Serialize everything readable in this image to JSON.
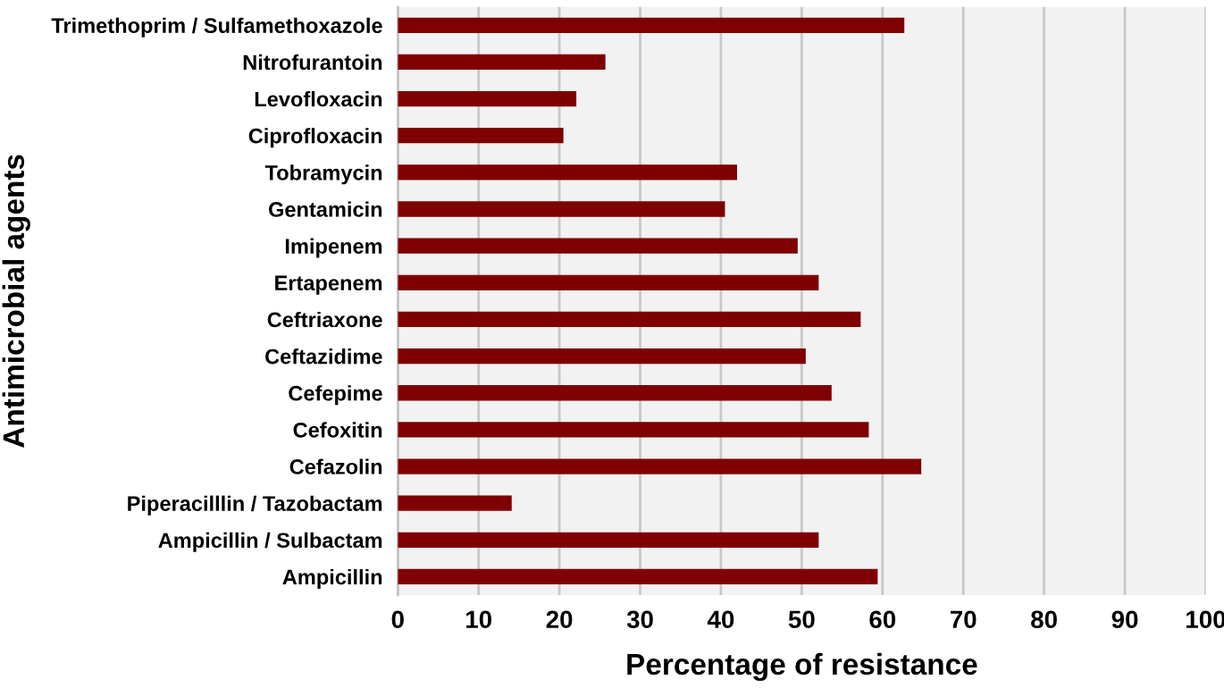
{
  "chart_data": {
    "type": "bar",
    "orientation": "horizontal",
    "xlabel": "Percentage of resistance",
    "ylabel": "Antimicrobial agents",
    "categories": [
      "Trimethoprim / Sulfamethoxazole",
      "Nitrofurantoin",
      "Levofloxacin",
      "Ciprofloxacin",
      "Tobramycin",
      "Gentamicin",
      "Imipenem",
      "Ertapenem",
      "Ceftriaxone",
      "Ceftazidime",
      "Cefepime",
      "Cefoxitin",
      "Cefazolin",
      "Piperacilllin / Tazobactam",
      "Ampicillin / Sulbactam",
      "Ampicillin"
    ],
    "values": [
      62.7,
      25.7,
      22.1,
      20.5,
      42.0,
      40.5,
      49.5,
      52.1,
      57.3,
      50.5,
      53.7,
      58.3,
      64.8,
      14.1,
      52.1,
      59.4
    ],
    "color": "#7f0000",
    "xlim": [
      0,
      100
    ],
    "xticks": [
      0,
      10,
      20,
      30,
      40,
      50,
      60,
      70,
      80,
      90,
      100
    ],
    "grid": "x",
    "legend": false
  }
}
